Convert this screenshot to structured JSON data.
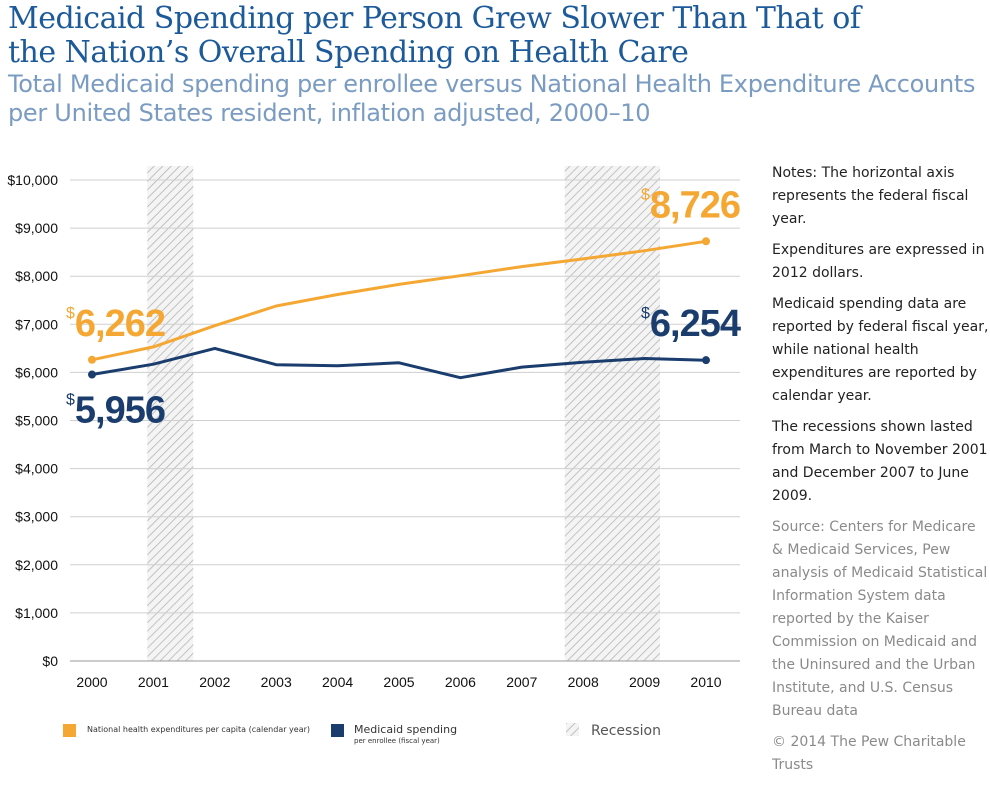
{
  "header": {
    "title": "Medicaid Spending per Person Grew Slower Than That of the Nation’s Overall Spending on Health Care",
    "subtitle": "Total Medicaid spending per enrollee versus National Health Expenditure Accounts per United States resident, inflation adjusted, 2000–10"
  },
  "notes": {
    "paragraphs": [
      "Notes: The horizontal axis represents the federal fiscal year.",
      "Expenditures are expressed in 2012 dollars.",
      "Medicaid spending data are reported by federal fiscal year, while national health expenditures are reported by calendar year.",
      "The recessions shown lasted from March to November 2001 and December 2007 to June 2009."
    ],
    "source": "Source: Centers for Medicare & Medicaid Services, Pew analysis of Medicaid Statistical Information System data reported by the Kaiser Commission on Medicaid and the Uninsured and the Urban Institute, and U.S. Census Bureau data",
    "copyright": "© 2014 The Pew Charitable Trusts"
  },
  "legend": {
    "nhe_main": "National health expenditures per capita (calendar year)",
    "medicaid_main": "Medicaid spending",
    "medicaid_sub": "per enrollee (fiscal year)",
    "recession": "Recession"
  },
  "colors": {
    "nhe": "#f5a733",
    "medicaid": "#1b3d6e",
    "grid": "#cfcfcf",
    "recession_hatch": "#b5b5b5"
  },
  "chart_data": {
    "type": "line",
    "x": [
      2000,
      2001,
      2002,
      2003,
      2004,
      2005,
      2006,
      2007,
      2008,
      2009,
      2010
    ],
    "xticks": [
      "2000",
      "2001",
      "2002",
      "2003",
      "2004",
      "2005",
      "2006",
      "2007",
      "2008",
      "2009",
      "2010"
    ],
    "yticks": [
      "$0",
      "$1,000",
      "$2,000",
      "$3,000",
      "$4,000",
      "$5,000",
      "$6,000",
      "$7,000",
      "$8,000",
      "$9,000",
      "$10,000"
    ],
    "ylim": [
      0,
      10000
    ],
    "grid": true,
    "series": [
      {
        "name": "National health expenditures per capita (calendar year)",
        "key": "nhe",
        "values": [
          6262,
          6530,
          6970,
          7380,
          7620,
          7830,
          8010,
          8200,
          8360,
          8530,
          8726
        ],
        "start_label": {
          "currency": "$",
          "value": "6,262"
        },
        "end_label": {
          "currency": "$",
          "value": "8,726"
        }
      },
      {
        "name": "Medicaid spending per enrollee (fiscal year)",
        "key": "medicaid",
        "values": [
          5956,
          6170,
          6500,
          6160,
          6140,
          6200,
          5890,
          6110,
          6210,
          6290,
          6254
        ],
        "start_label": {
          "currency": "$",
          "value": "5,956"
        },
        "end_label": {
          "currency": "$",
          "value": "6,254"
        }
      }
    ],
    "recessions": [
      {
        "start": 2000.9,
        "end": 2001.65
      },
      {
        "start": 2007.7,
        "end": 2009.25
      }
    ]
  }
}
